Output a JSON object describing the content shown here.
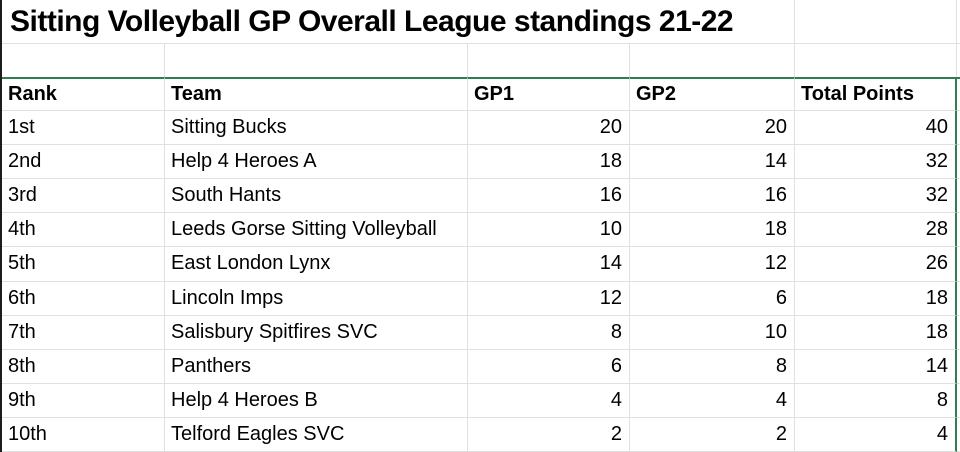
{
  "title": "Sitting Volleyball GP Overall League standings 21-22",
  "table": {
    "columns": [
      "Rank",
      "Team",
      "GP1",
      "GP2",
      "Total Points"
    ],
    "rows": [
      {
        "rank": "1st",
        "team": "Sitting Bucks",
        "gp1": "20",
        "gp2": "20",
        "total": "40"
      },
      {
        "rank": "2nd",
        "team": "Help 4 Heroes A",
        "gp1": "18",
        "gp2": "14",
        "total": "32"
      },
      {
        "rank": "3rd",
        "team": "South Hants",
        "gp1": "16",
        "gp2": "16",
        "total": "32"
      },
      {
        "rank": "4th",
        "team": "Leeds Gorse Sitting Volleyball",
        "gp1": "10",
        "gp2": "18",
        "total": "28"
      },
      {
        "rank": "5th",
        "team": "East London Lynx",
        "gp1": "14",
        "gp2": "12",
        "total": "26"
      },
      {
        "rank": "6th",
        "team": "Lincoln Imps",
        "gp1": "12",
        "gp2": "6",
        "total": "18"
      },
      {
        "rank": "7th",
        "team": "Salisbury Spitfires SVC",
        "gp1": "8",
        "gp2": "10",
        "total": "18"
      },
      {
        "rank": "8th",
        "team": "Panthers",
        "gp1": "6",
        "gp2": "8",
        "total": "14"
      },
      {
        "rank": "9th",
        "team": "Help 4 Heroes B",
        "gp1": "4",
        "gp2": "4",
        "total": "8"
      },
      {
        "rank": "10th",
        "team": "Telford Eagles SVC",
        "gp1": "2",
        "gp2": "2",
        "total": "4"
      }
    ]
  },
  "colors": {
    "selection_green": "#2f7d53",
    "gridline": "#e0e0e0",
    "left_edge": "#1c1c1c",
    "text": "#000000",
    "background": "#ffffff"
  }
}
